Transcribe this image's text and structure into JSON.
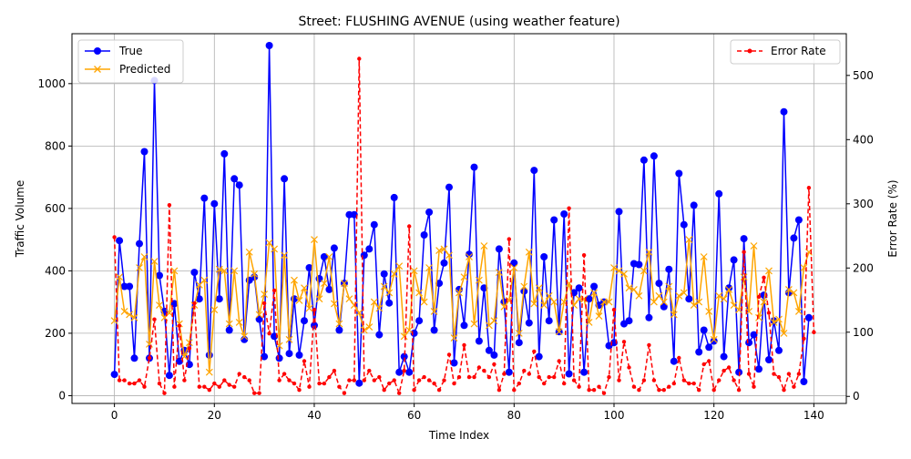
{
  "chart_data": {
    "type": "line",
    "title": "Street: FLUSHING AVENUE (using weather feature)",
    "xlabel": "Time Index",
    "ylabel_left": "Traffic Volume",
    "ylabel_right": "Error Rate (%)",
    "xlim": [
      -8.5,
      146.5
    ],
    "ylim_left": [
      -25,
      1160
    ],
    "ylim_right": [
      -11,
      565
    ],
    "x_ticks": [
      0,
      20,
      40,
      60,
      80,
      100,
      120,
      140
    ],
    "y_ticks_left": [
      0,
      200,
      400,
      600,
      800,
      1000
    ],
    "y_ticks_right": [
      0,
      100,
      200,
      300,
      400,
      500
    ],
    "grid": true,
    "legend_left": "top-left",
    "legend_right": "top-right",
    "colors": {
      "true": "#0000ff",
      "predicted": "#ffa500",
      "error": "#ff0000",
      "grid": "#b0b0b0"
    },
    "series": [
      {
        "name": "True",
        "axis": "left",
        "marker": "circle",
        "values": [
          68,
          497,
          350,
          350,
          120,
          487,
          782,
          120,
          1010,
          385,
          270,
          65,
          295,
          110,
          145,
          100,
          395,
          310,
          633,
          130,
          615,
          310,
          775,
          210,
          695,
          675,
          180,
          370,
          380,
          245,
          125,
          1122,
          190,
          120,
          695,
          135,
          310,
          130,
          240,
          410,
          225,
          375,
          445,
          340,
          473,
          210,
          360,
          580,
          580,
          40,
          450,
          470,
          548,
          195,
          390,
          297,
          635,
          75,
          125,
          75,
          200,
          240,
          515,
          588,
          210,
          360,
          425,
          668,
          105,
          340,
          225,
          453,
          732,
          175,
          345,
          145,
          130,
          470,
          300,
          75,
          425,
          170,
          335,
          233,
          722,
          125,
          445,
          240,
          563,
          205,
          582,
          70,
          330,
          345,
          75,
          310,
          350,
          290,
          300,
          160,
          170,
          590,
          230,
          240,
          423,
          420,
          755,
          250,
          768,
          360,
          285,
          405,
          110,
          712,
          548,
          310,
          610,
          140,
          210,
          155,
          175,
          647,
          125,
          345,
          435,
          75,
          503,
          170,
          195,
          85,
          322,
          115,
          240,
          145,
          910,
          330,
          505,
          563,
          45,
          250
        ]
      },
      {
        "name": "Predicted",
        "axis": "left",
        "marker": "x",
        "values": [
          240,
          380,
          270,
          260,
          250,
          410,
          445,
          165,
          430,
          290,
          250,
          265,
          400,
          230,
          125,
          170,
          290,
          355,
          370,
          75,
          275,
          405,
          400,
          230,
          400,
          235,
          190,
          460,
          390,
          260,
          325,
          490,
          470,
          160,
          450,
          180,
          370,
          305,
          345,
          280,
          500,
          310,
          360,
          445,
          295,
          230,
          360,
          310,
          290,
          265,
          210,
          220,
          300,
          280,
          350,
          330,
          390,
          415,
          190,
          210,
          400,
          330,
          300,
          410,
          270,
          465,
          470,
          450,
          185,
          330,
          380,
          445,
          230,
          370,
          480,
          225,
          240,
          395,
          285,
          305,
          410,
          200,
          350,
          460,
          295,
          345,
          290,
          320,
          300,
          205,
          300,
          360,
          290,
          310,
          310,
          235,
          330,
          255,
          300,
          300,
          410,
          400,
          390,
          345,
          340,
          320,
          400,
          460,
          300,
          320,
          300,
          350,
          260,
          320,
          330,
          500,
          290,
          300,
          445,
          270,
          180,
          320,
          310,
          340,
          290,
          275,
          380,
          270,
          480,
          250,
          300,
          400,
          235,
          245,
          200,
          340,
          330,
          270,
          410,
          460
        ]
      },
      {
        "name": "Error Rate",
        "axis": "right",
        "marker": "dot",
        "dashed": true,
        "values": [
          248,
          25,
          25,
          20,
          20,
          25,
          15,
          60,
          120,
          20,
          5,
          298,
          15,
          110,
          25,
          75,
          145,
          15,
          15,
          10,
          20,
          15,
          25,
          18,
          15,
          35,
          30,
          25,
          5,
          5,
          145,
          98,
          165,
          25,
          35,
          25,
          20,
          10,
          55,
          15,
          135,
          20,
          20,
          30,
          40,
          15,
          5,
          25,
          25,
          526,
          25,
          40,
          25,
          30,
          10,
          20,
          25,
          5,
          40,
          265,
          10,
          25,
          30,
          25,
          20,
          10,
          25,
          65,
          20,
          30,
          80,
          30,
          30,
          45,
          40,
          30,
          50,
          10,
          35,
          245,
          10,
          20,
          40,
          35,
          70,
          30,
          20,
          30,
          30,
          55,
          20,
          293,
          25,
          15,
          220,
          10,
          10,
          15,
          5,
          30,
          135,
          25,
          85,
          45,
          15,
          10,
          25,
          80,
          25,
          10,
          10,
          15,
          20,
          60,
          25,
          20,
          20,
          10,
          50,
          55,
          10,
          25,
          40,
          45,
          25,
          10,
          225,
          35,
          15,
          155,
          185,
          130,
          35,
          30,
          10,
          35,
          15,
          35,
          90,
          325,
          100
        ]
      }
    ]
  }
}
